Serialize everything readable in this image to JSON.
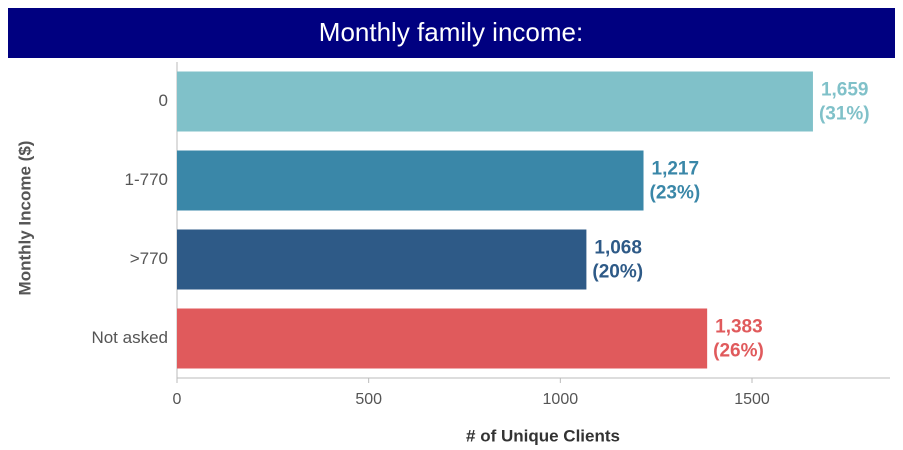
{
  "chart_data": {
    "type": "hbar",
    "title": "Monthly family income:",
    "categories": [
      "0",
      "1-770",
      ">770",
      "Not asked"
    ],
    "values": [
      1659,
      1217,
      1068,
      1383
    ],
    "value_labels": [
      "1,659",
      "1,217",
      "1,068",
      "1,383"
    ],
    "share_labels": [
      "(31%)",
      "(23%)",
      "(20%)",
      "(26%)"
    ],
    "colors": [
      "#80c1c9",
      "#3a87a8",
      "#2e5a87",
      "#e05a5c"
    ],
    "xlim": [
      0,
      1860
    ],
    "xticks": [
      0,
      500,
      1000,
      1500
    ],
    "xlabel": "# of Unique Clients",
    "ylabel": "Monthly Income ($)"
  }
}
